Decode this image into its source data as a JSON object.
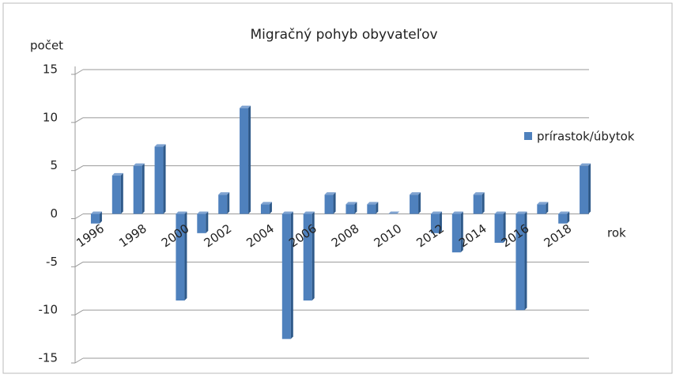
{
  "chart_data": {
    "type": "bar",
    "title": "Migračný pohyb obyvateľov",
    "y_label": "počet",
    "x_label": "rok",
    "categories": [
      "1996",
      null,
      "1998",
      null,
      "2000",
      null,
      "2002",
      null,
      "2004",
      null,
      "2006",
      null,
      "2008",
      null,
      "2010",
      null,
      "2012",
      null,
      "2014",
      null,
      "2016",
      null,
      "2018",
      null
    ],
    "series": [
      {
        "name": "prírastok/úbytok",
        "color": "#4f81bd",
        "values": [
          -1,
          4,
          5,
          7,
          -9,
          -2,
          2,
          11,
          1,
          -13,
          -9,
          2,
          1,
          1,
          0,
          2,
          -2,
          -4,
          2,
          -3,
          -10,
          1,
          -1,
          5
        ]
      }
    ],
    "ylim": [
      -15,
      15
    ],
    "yticks": [
      -15,
      -10,
      -5,
      0,
      5,
      10,
      15
    ],
    "grid": true,
    "legend": "right"
  }
}
